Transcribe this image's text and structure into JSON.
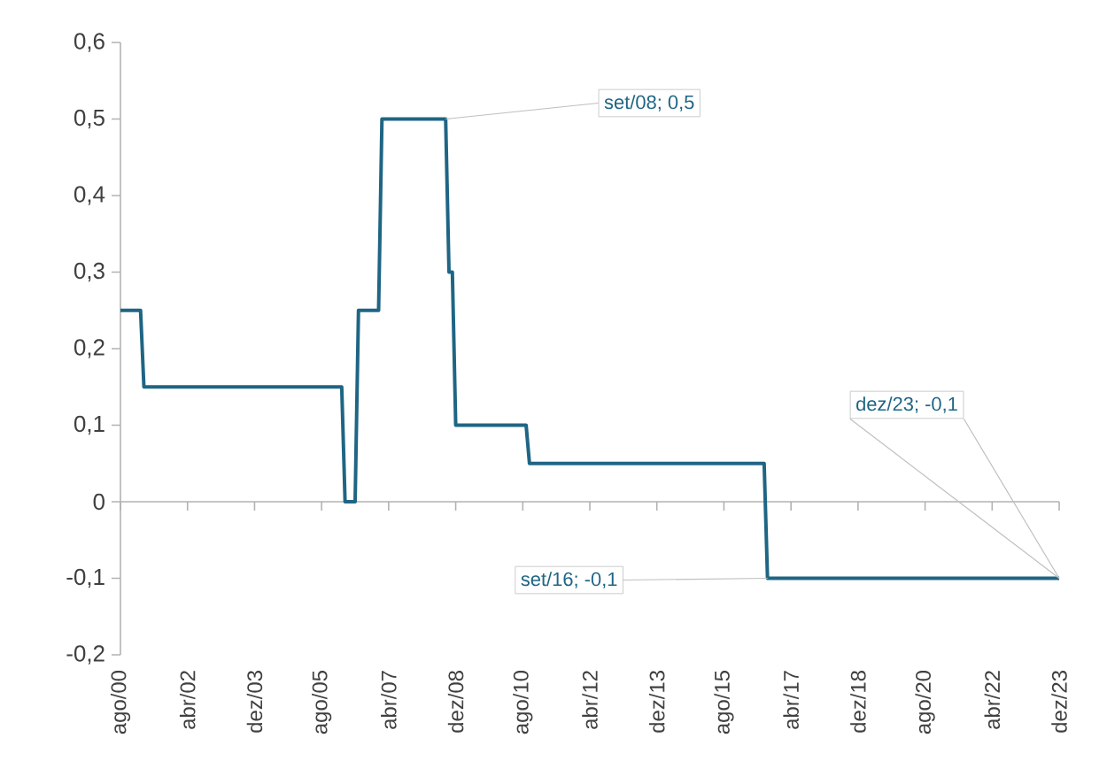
{
  "chart_data": {
    "type": "line",
    "color": "#1f6584",
    "line_style": "solid",
    "x": [
      "2000-08",
      "2001-02",
      "2001-03",
      "2006-02",
      "2006-03",
      "2006-06",
      "2006-07",
      "2007-01",
      "2007-02",
      "2008-09",
      "2008-10",
      "2008-11",
      "2008-12",
      "2010-09",
      "2010-10",
      "2016-08",
      "2016-09",
      "2023-12"
    ],
    "values": [
      0.25,
      0.25,
      0.15,
      0.15,
      0,
      0,
      0.25,
      0.25,
      0.5,
      0.5,
      0.3,
      0.3,
      0.1,
      0.1,
      0.05,
      0.05,
      -0.1,
      -0.1
    ],
    "xlim": [
      "2000-08",
      "2023-12"
    ],
    "xticks": [
      {
        "value": "2000-08",
        "label": "ago/00"
      },
      {
        "value": "2002-04",
        "label": "abr/02"
      },
      {
        "value": "2003-12",
        "label": "dez/03"
      },
      {
        "value": "2005-08",
        "label": "ago/05"
      },
      {
        "value": "2007-04",
        "label": "abr/07"
      },
      {
        "value": "2008-12",
        "label": "dez/08"
      },
      {
        "value": "2010-08",
        "label": "ago/10"
      },
      {
        "value": "2012-04",
        "label": "abr/12"
      },
      {
        "value": "2013-12",
        "label": "dez/13"
      },
      {
        "value": "2015-08",
        "label": "ago/15"
      },
      {
        "value": "2017-04",
        "label": "abr/17"
      },
      {
        "value": "2018-12",
        "label": "dez/18"
      },
      {
        "value": "2020-08",
        "label": "ago/20"
      },
      {
        "value": "2022-04",
        "label": "abr/22"
      },
      {
        "value": "2023-12",
        "label": "dez/23"
      }
    ],
    "ylim": [
      -0.2,
      0.6
    ],
    "yticks": [
      {
        "value": -0.2,
        "label": "-0,2"
      },
      {
        "value": -0.1,
        "label": "-0,1"
      },
      0,
      {
        "value": 0.1,
        "label": "0,1"
      },
      {
        "value": 0.2,
        "label": "0,2"
      },
      {
        "value": 0.3,
        "label": "0,3"
      },
      {
        "value": 0.4,
        "label": "0,4"
      },
      {
        "value": 0.5,
        "label": "0,5"
      },
      {
        "value": 0.6,
        "label": "0,6"
      }
    ],
    "annotations": [
      {
        "text": "set/08; 0,5",
        "x": "2008-09",
        "y": 0.5
      },
      {
        "text": "set/16; -0,1",
        "x": "2016-09",
        "y": -0.1
      },
      {
        "text": "dez/23; -0,1",
        "x": "2023-12",
        "y": -0.1
      }
    ]
  }
}
